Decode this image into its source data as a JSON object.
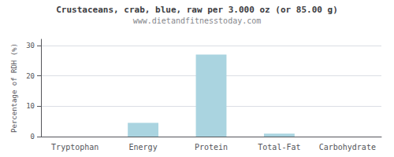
{
  "chart_data": {
    "type": "bar",
    "title": "Crustaceans, crab, blue, raw per 3.000 oz (or 85.00 g)",
    "subtitle": "www.dietandfitnesstoday.com",
    "categories": [
      "Tryptophan",
      "Energy",
      "Protein",
      "Total-Fat",
      "Carbohydrate"
    ],
    "values": [
      0.0,
      4.5,
      27.0,
      1.0,
      0.0
    ],
    "color": "#aad4e0",
    "ylabel": "Percentage of RDH (%)",
    "ylim": [
      0,
      32
    ],
    "yticks": [
      0,
      10,
      20,
      30
    ],
    "grid": true
  }
}
